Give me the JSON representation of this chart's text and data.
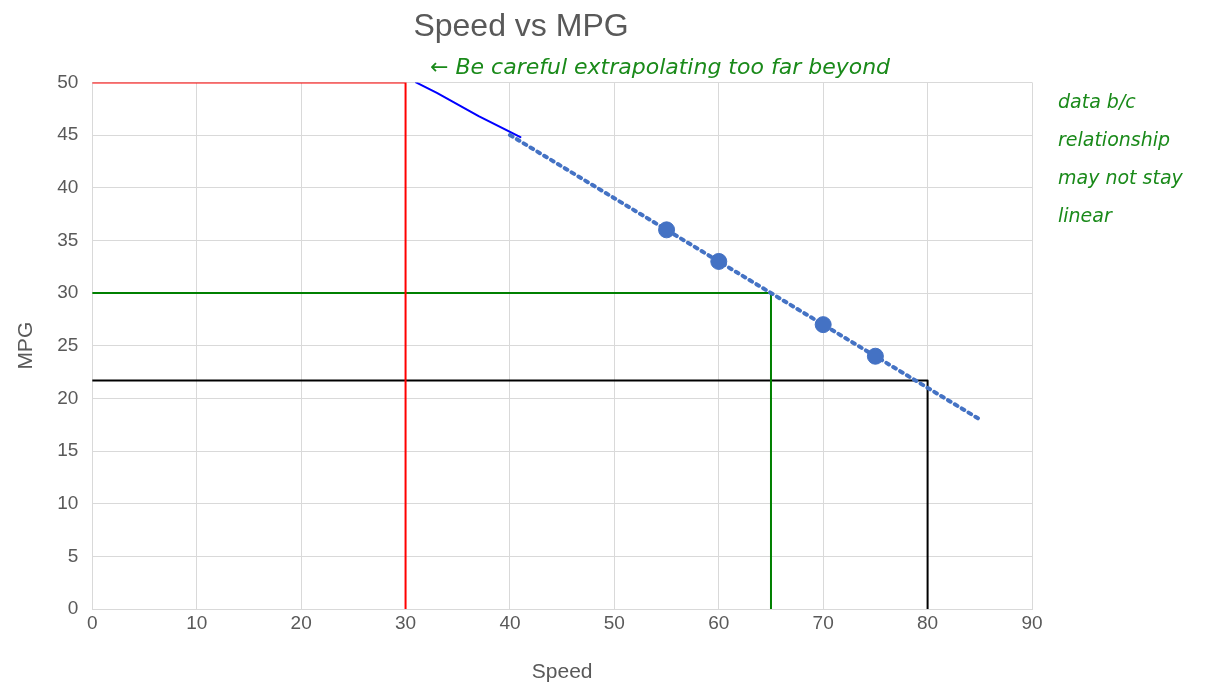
{
  "chart_data": {
    "type": "scatter",
    "title": "Speed vs MPG",
    "xlabel": "Speed",
    "ylabel": "MPG",
    "xlim": [
      0,
      90
    ],
    "xticks": [
      0,
      10,
      20,
      30,
      40,
      50,
      60,
      70,
      80,
      90
    ],
    "ylim": [
      0,
      50
    ],
    "yticks": [
      0,
      5,
      10,
      15,
      20,
      25,
      30,
      35,
      40,
      45,
      50
    ],
    "grid": true,
    "marker": "circle",
    "series": [
      {
        "type": "scatter",
        "color": "#4472c4",
        "x": [
          55,
          60,
          70,
          75
        ],
        "values": [
          36,
          33,
          27,
          24
        ]
      },
      {
        "type": "line",
        "color": "#4472c4",
        "line_style": "dotted",
        "marker": "none",
        "x": [
          40,
          85
        ],
        "values": [
          45,
          18
        ]
      },
      {
        "type": "line",
        "color": "#ff0000",
        "line_style": "solid",
        "marker": "none",
        "x": [
          0,
          30,
          30
        ],
        "values": [
          50,
          50,
          0
        ]
      },
      {
        "type": "line",
        "color": "#008000",
        "line_style": "solid",
        "marker": "none",
        "x": [
          0,
          65,
          65
        ],
        "values": [
          30,
          30,
          0
        ]
      },
      {
        "type": "line",
        "color": "#000000",
        "line_style": "solid",
        "marker": "none",
        "x": [
          0,
          80,
          80
        ],
        "values": [
          21.7,
          21.7,
          0
        ]
      },
      {
        "type": "line",
        "color": "#0000ff",
        "line_style": "solid",
        "marker": "none",
        "x": [
          41,
          37,
          33,
          31
        ],
        "values": [
          44.8,
          46.8,
          49,
          50
        ]
      }
    ],
    "annotations": [
      "← Be careful extrapolating too far beyond",
      "data b/c relationship may not stay linear"
    ]
  }
}
